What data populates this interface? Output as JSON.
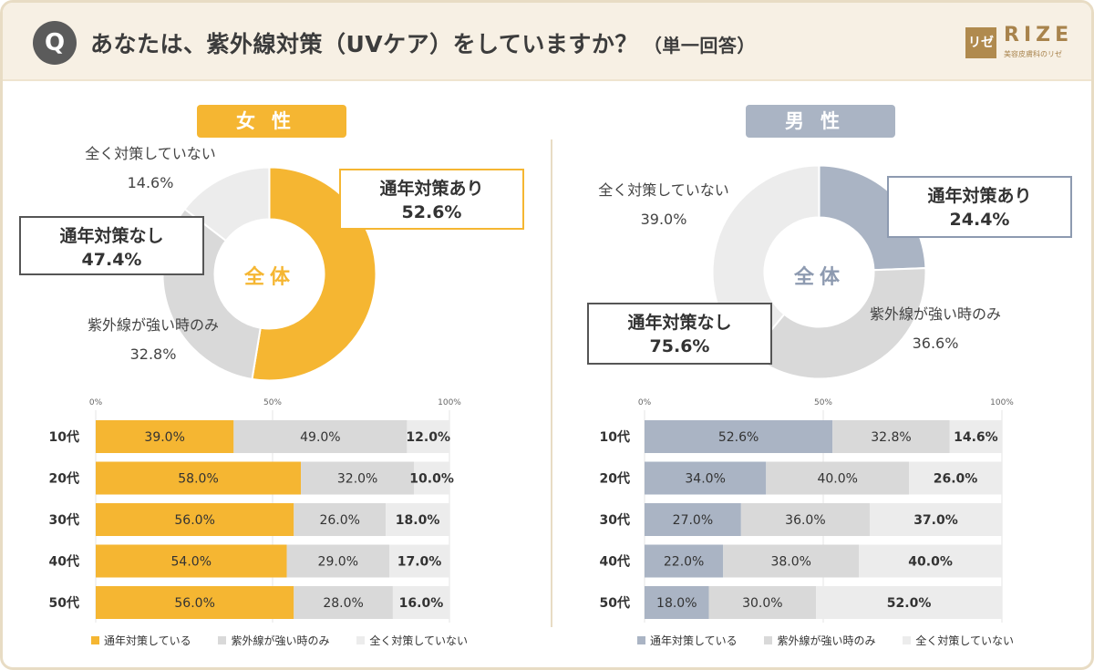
{
  "header": {
    "q_badge": "Q",
    "title": "あなたは、紫外線対策（UVケア）をしていますか？",
    "title_note": "（単一回答）",
    "logo_mark": "リゼ",
    "logo_text": "RIZE",
    "logo_tagline": "美容皮膚科のリゼ"
  },
  "colors": {
    "female_accent": "#f5b632",
    "male_accent": "#aab4c4",
    "mid_gray": "#d9d9d9",
    "light_gray": "#ececec"
  },
  "female": {
    "pill": "女性",
    "center": "全体",
    "labels": {
      "all_year": {
        "name": "通年対策あり",
        "value": "52.6%"
      },
      "strong": {
        "name": "紫外線が強い時のみ",
        "value": "32.8%"
      },
      "none": {
        "name": "全く対策していない",
        "value": "14.6%"
      },
      "no_all_year": {
        "name": "通年対策なし",
        "value": "47.4%"
      }
    }
  },
  "male": {
    "pill": "男性",
    "center": "全体",
    "labels": {
      "all_year": {
        "name": "通年対策あり",
        "value": "24.4%"
      },
      "strong": {
        "name": "紫外線が強い時のみ",
        "value": "36.6%"
      },
      "none": {
        "name": "全く対策していない",
        "value": "39.0%"
      },
      "no_all_year": {
        "name": "通年対策なし",
        "value": "75.6%"
      }
    }
  },
  "legend": {
    "items": [
      "通年対策している",
      "紫外線が強い時のみ",
      "全く対策していない"
    ]
  },
  "chart_data": [
    {
      "type": "pie",
      "title": "女性 全体",
      "categories": [
        "通年対策あり",
        "紫外線が強い時のみ",
        "全く対策していない"
      ],
      "values": [
        52.6,
        32.8,
        14.6
      ],
      "donut": true
    },
    {
      "type": "bar",
      "title": "女性 年代別",
      "orientation": "horizontal",
      "stacked": true,
      "categories": [
        "10代",
        "20代",
        "30代",
        "40代",
        "50代"
      ],
      "xlim": [
        0,
        100
      ],
      "xticks": [
        "0%",
        "50%",
        "100%"
      ],
      "series": [
        {
          "name": "通年対策している",
          "values": [
            39.0,
            58.0,
            56.0,
            54.0,
            56.0
          ]
        },
        {
          "name": "紫外線が強い時のみ",
          "values": [
            49.0,
            32.0,
            26.0,
            29.0,
            28.0
          ]
        },
        {
          "name": "全く対策していない",
          "values": [
            12.0,
            10.0,
            18.0,
            17.0,
            16.0
          ]
        }
      ]
    },
    {
      "type": "pie",
      "title": "男性 全体",
      "categories": [
        "通年対策あり",
        "紫外線が強い時のみ",
        "全く対策していない"
      ],
      "values": [
        24.4,
        36.6,
        39.0
      ],
      "donut": true
    },
    {
      "type": "bar",
      "title": "男性 年代別",
      "orientation": "horizontal",
      "stacked": true,
      "categories": [
        "10代",
        "20代",
        "30代",
        "40代",
        "50代"
      ],
      "xlim": [
        0,
        100
      ],
      "xticks": [
        "0%",
        "50%",
        "100%"
      ],
      "series": [
        {
          "name": "通年対策している",
          "values": [
            52.6,
            34.0,
            27.0,
            22.0,
            18.0
          ]
        },
        {
          "name": "紫外線が強い時のみ",
          "values": [
            32.8,
            40.0,
            36.0,
            38.0,
            30.0
          ]
        },
        {
          "name": "全く対策していない",
          "values": [
            14.6,
            26.0,
            37.0,
            40.0,
            52.0
          ]
        }
      ]
    }
  ]
}
